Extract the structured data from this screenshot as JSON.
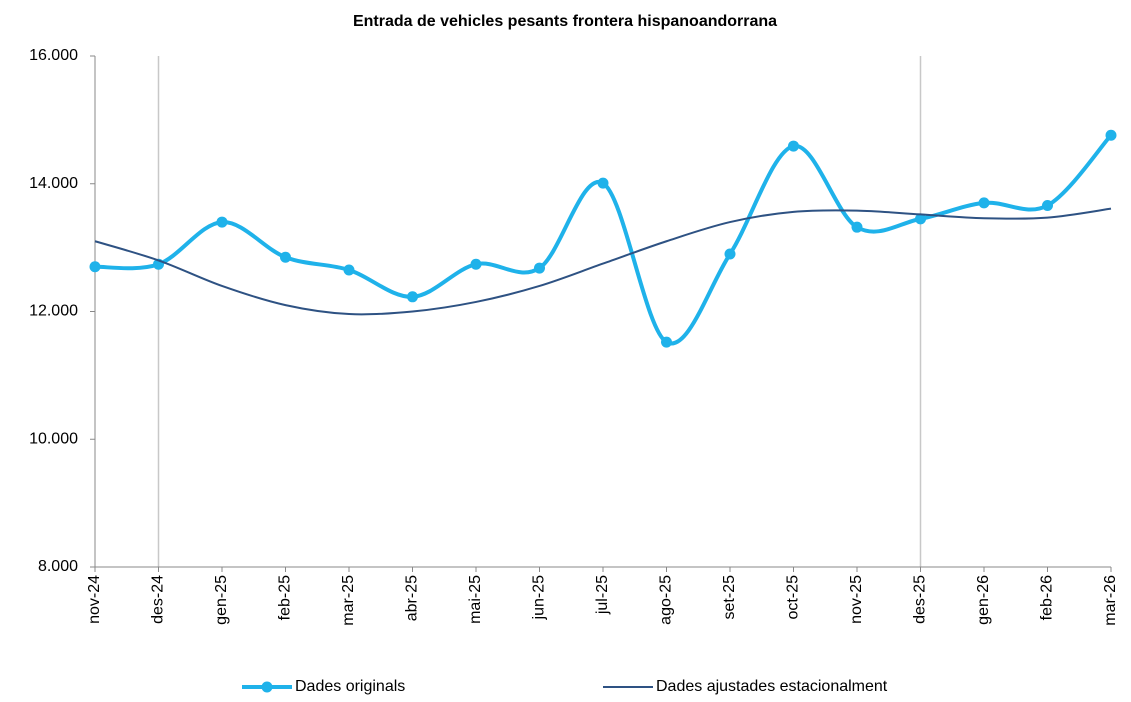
{
  "chart_data": {
    "type": "line",
    "title": "Entrada de vehicles pesants frontera hispanoandorrana",
    "categories": [
      "nov-24",
      "des-24",
      "gen-25",
      "feb-25",
      "mar-25",
      "abr-25",
      "mai-25",
      "jun-25",
      "jul-25",
      "ago-25",
      "set-25",
      "oct-25",
      "nov-25",
      "des-25",
      "gen-26",
      "feb-26",
      "mar-26"
    ],
    "series": [
      {
        "name": "Dades originals",
        "color": "#1fb2ea",
        "markers": true,
        "values": [
          12700,
          12740,
          13400,
          12850,
          12650,
          12230,
          12740,
          12680,
          14010,
          11520,
          12900,
          14590,
          13320,
          13450,
          13700,
          13660,
          14760
        ]
      },
      {
        "name": "Dades ajustades estacionalment",
        "color": "#2e5283",
        "markers": false,
        "values": [
          13100,
          12800,
          12400,
          12100,
          11960,
          12000,
          12150,
          12400,
          12750,
          13100,
          13400,
          13560,
          13580,
          13520,
          13460,
          13470,
          13610
        ]
      }
    ],
    "ylim": [
      8000,
      16000
    ],
    "yticks": [
      {
        "value": 8000,
        "label": "8.000"
      },
      {
        "value": 10000,
        "label": "10.000"
      },
      {
        "value": 12000,
        "label": "12.000"
      },
      {
        "value": 14000,
        "label": "14.000"
      },
      {
        "value": 16000,
        "label": "16.000"
      }
    ],
    "vertical_lines": [
      1,
      13
    ],
    "legend": "bottom",
    "smooth": true
  }
}
